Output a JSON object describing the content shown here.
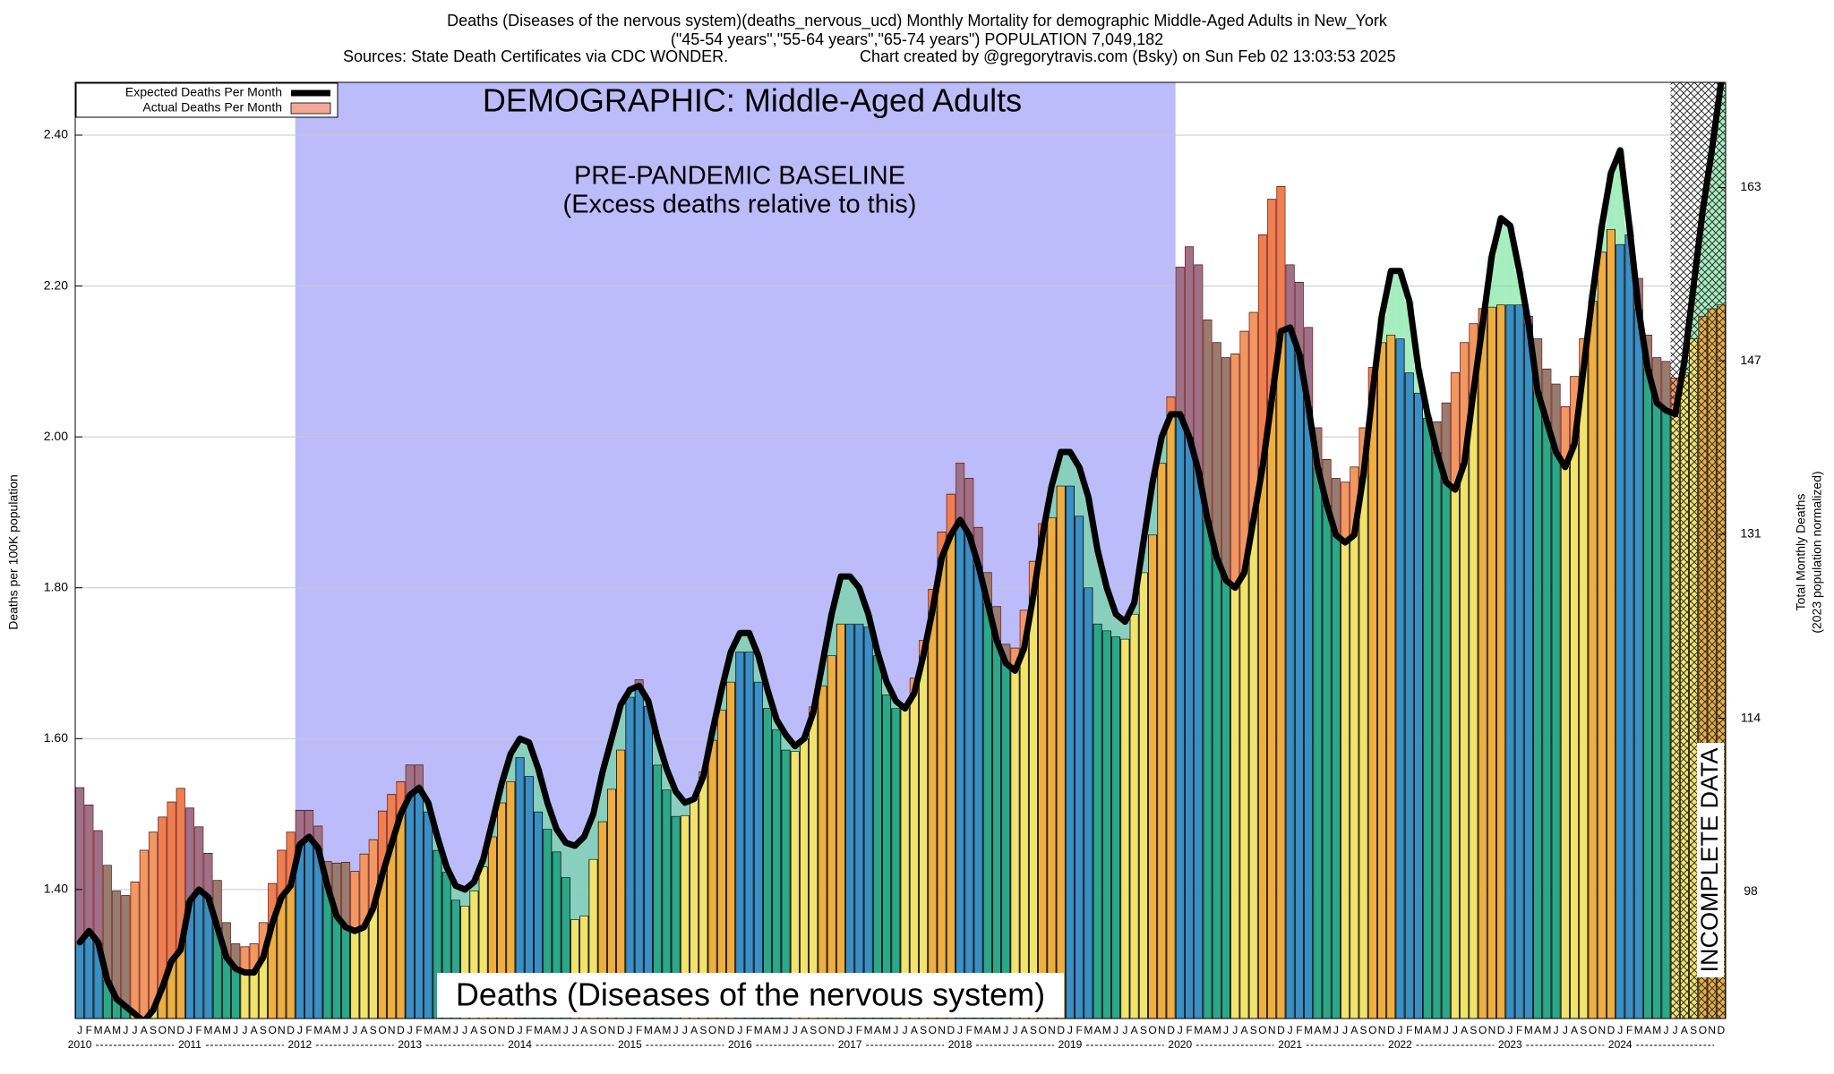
{
  "chart_data": {
    "type": "bar",
    "title": "Deaths (Diseases of the nervous system)(deaths_nervous_ucd) Monthly Mortality for demographic Middle-Aged Adults in New_York",
    "subtitle": "(\"45-54 years\",\"55-64 years\",\"65-74 years\") POPULATION 7,049,182",
    "source": "Sources: State Death Certificates via CDC WONDER.",
    "credit": "Chart created by @gregorytravis.com (Bsky) on Sun Feb 02 13:03:53 2025",
    "y_label": "Deaths per 100K population",
    "y2_label": "Total Monthly Deaths",
    "y2_label_note": "(2023 population normalized)",
    "annotations": {
      "demographic": "DEMOGRAPHIC: Middle-Aged Adults",
      "baseline": "PRE-PANDEMIC BASELINE",
      "baseline_note": "(Excess deaths relative to this)",
      "cause": "Deaths (Diseases of the nervous system)",
      "incomplete": "INCOMPLETE DATA"
    },
    "categories": [
      "J",
      "F",
      "M",
      "A",
      "M",
      "J",
      "J",
      "A",
      "S",
      "O",
      "N",
      "D",
      "J",
      "F",
      "M",
      "A",
      "M",
      "J",
      "J",
      "A",
      "S",
      "O",
      "N",
      "D",
      "J",
      "F",
      "M",
      "A",
      "M",
      "J",
      "J",
      "A",
      "S",
      "O",
      "N",
      "D",
      "J",
      "F",
      "M",
      "A",
      "M",
      "J",
      "J",
      "A",
      "S",
      "O",
      "N",
      "D",
      "J",
      "F",
      "M",
      "A",
      "M",
      "J",
      "J",
      "A",
      "S",
      "O",
      "N",
      "D",
      "J",
      "F",
      "M",
      "A",
      "M",
      "J",
      "J",
      "A",
      "S",
      "O",
      "N",
      "D",
      "J",
      "F",
      "M",
      "A",
      "M",
      "J",
      "J",
      "A",
      "S",
      "O",
      "N",
      "D",
      "J",
      "F",
      "M",
      "A",
      "M",
      "J",
      "J",
      "A",
      "S",
      "O",
      "N",
      "D",
      "J",
      "F",
      "M",
      "A",
      "M",
      "J",
      "J",
      "A",
      "S",
      "O",
      "N",
      "D",
      "J",
      "F",
      "M",
      "A",
      "M",
      "J",
      "J",
      "A",
      "S",
      "O",
      "N",
      "D",
      "J",
      "F",
      "M",
      "A",
      "M",
      "J",
      "J",
      "A",
      "S",
      "O",
      "N",
      "D",
      "J",
      "F",
      "M",
      "A",
      "M",
      "J",
      "J",
      "A",
      "S",
      "O",
      "N",
      "D",
      "J",
      "F",
      "M",
      "A",
      "M",
      "J",
      "J",
      "A",
      "S",
      "O",
      "N",
      "D",
      "J",
      "F",
      "M",
      "A",
      "M",
      "J",
      "J",
      "A",
      "S",
      "O",
      "N",
      "D",
      "J",
      "F",
      "M",
      "A",
      "M",
      "J",
      "J",
      "A",
      "S",
      "O",
      "N",
      "D"
    ],
    "years": [
      "2010",
      "2011",
      "2012",
      "2013",
      "2014",
      "2015",
      "2016",
      "2017",
      "2018",
      "2019",
      "2020",
      "2021",
      "2022",
      "2023",
      "2024"
    ],
    "series": [
      {
        "name": "Actual Deaths Per Month",
        "color": "#f4a898",
        "values": [
          1.535,
          1.512,
          1.478,
          1.432,
          1.398,
          1.392,
          1.41,
          1.452,
          1.476,
          1.496,
          1.516,
          1.534,
          1.508,
          1.483,
          1.448,
          1.412,
          1.356,
          1.328,
          1.324,
          1.328,
          1.356,
          1.408,
          1.452,
          1.476,
          1.505,
          1.505,
          1.484,
          1.437,
          1.435,
          1.436,
          1.424,
          1.447,
          1.466,
          1.504,
          1.526,
          1.543,
          1.565,
          1.565,
          1.503,
          1.452,
          1.423,
          1.386,
          1.378,
          1.398,
          1.43,
          1.47,
          1.515,
          1.543,
          1.575,
          1.55,
          1.503,
          1.48,
          1.45,
          1.416,
          1.36,
          1.365,
          1.44,
          1.49,
          1.533,
          1.585,
          1.655,
          1.678,
          1.643,
          1.565,
          1.532,
          1.497,
          1.498,
          1.52,
          1.556,
          1.598,
          1.638,
          1.675,
          1.715,
          1.715,
          1.675,
          1.64,
          1.612,
          1.585,
          1.583,
          1.6,
          1.642,
          1.67,
          1.71,
          1.752,
          1.752,
          1.752,
          1.748,
          1.71,
          1.658,
          1.64,
          1.645,
          1.68,
          1.73,
          1.798,
          1.874,
          1.924,
          1.965,
          1.945,
          1.88,
          1.82,
          1.775,
          1.725,
          1.72,
          1.77,
          1.835,
          1.885,
          1.893,
          1.935,
          1.935,
          1.895,
          1.8,
          1.752,
          1.743,
          1.735,
          1.732,
          1.765,
          1.82,
          1.87,
          1.965,
          2.053,
          2.225,
          2.252,
          2.228,
          2.155,
          2.125,
          2.105,
          2.11,
          2.14,
          2.165,
          2.268,
          2.315,
          2.332,
          2.228,
          2.205,
          2.145,
          2.012,
          1.97,
          1.945,
          1.94,
          1.96,
          2.012,
          2.092,
          2.125,
          2.135,
          2.13,
          2.085,
          2.058,
          2.025,
          2.02,
          2.045,
          2.085,
          2.125,
          2.15,
          2.17,
          2.172,
          2.175,
          2.175,
          2.175,
          2.16,
          2.13,
          2.09,
          2.07,
          2.04,
          2.08,
          2.13,
          2.18,
          2.245,
          2.275,
          2.255,
          2.268,
          2.21,
          2.135,
          2.105,
          2.1,
          2.078,
          2.085,
          2.13,
          2.16,
          2.17,
          2.175
        ]
      },
      {
        "name": "Expected Deaths Per Month",
        "color": "#000000",
        "values": [
          1.33,
          1.345,
          1.33,
          1.28,
          1.255,
          1.245,
          1.235,
          1.225,
          1.24,
          1.27,
          1.305,
          1.32,
          1.385,
          1.4,
          1.39,
          1.35,
          1.31,
          1.295,
          1.29,
          1.29,
          1.31,
          1.355,
          1.39,
          1.405,
          1.46,
          1.47,
          1.455,
          1.405,
          1.365,
          1.35,
          1.345,
          1.35,
          1.375,
          1.42,
          1.46,
          1.5,
          1.525,
          1.535,
          1.515,
          1.47,
          1.43,
          1.405,
          1.4,
          1.41,
          1.44,
          1.49,
          1.54,
          1.58,
          1.6,
          1.595,
          1.56,
          1.515,
          1.48,
          1.462,
          1.458,
          1.47,
          1.5,
          1.555,
          1.6,
          1.645,
          1.665,
          1.67,
          1.65,
          1.6,
          1.56,
          1.53,
          1.515,
          1.52,
          1.55,
          1.61,
          1.665,
          1.715,
          1.74,
          1.74,
          1.71,
          1.665,
          1.625,
          1.605,
          1.59,
          1.6,
          1.635,
          1.7,
          1.765,
          1.815,
          1.815,
          1.8,
          1.765,
          1.715,
          1.675,
          1.65,
          1.64,
          1.66,
          1.71,
          1.77,
          1.84,
          1.87,
          1.89,
          1.87,
          1.83,
          1.78,
          1.73,
          1.7,
          1.69,
          1.72,
          1.79,
          1.87,
          1.935,
          1.98,
          1.98,
          1.96,
          1.92,
          1.85,
          1.8,
          1.765,
          1.755,
          1.78,
          1.86,
          1.94,
          2.0,
          2.03,
          2.03,
          2.0,
          1.955,
          1.89,
          1.84,
          1.81,
          1.8,
          1.82,
          1.89,
          1.96,
          2.05,
          2.14,
          2.145,
          2.11,
          2.04,
          1.96,
          1.91,
          1.87,
          1.86,
          1.87,
          1.95,
          2.06,
          2.16,
          2.22,
          2.22,
          2.18,
          2.09,
          2.03,
          1.98,
          1.94,
          1.93,
          1.965,
          2.06,
          2.15,
          2.24,
          2.29,
          2.28,
          2.22,
          2.15,
          2.06,
          2.02,
          1.98,
          1.96,
          1.99,
          2.09,
          2.19,
          2.28,
          2.35,
          2.38,
          2.28,
          2.17,
          2.09,
          2.045,
          2.035,
          2.03,
          2.1,
          2.2,
          2.3,
          2.38,
          2.47
        ]
      }
    ],
    "bar_colors": [
      "#3a8fc4",
      "#2aa888",
      "#f2e46a",
      "#eeae40"
    ],
    "excess_color": "#f05a5a",
    "deficit_color": "#5ce08a",
    "baseline_color": "#bcbcfa",
    "ylim": [
      1.229,
      2.47
    ],
    "yticks": [
      {
        "value": 1.4,
        "label": "1.40"
      },
      {
        "value": 1.6,
        "label": "1.60"
      },
      {
        "value": 1.8,
        "label": "1.80"
      },
      {
        "value": 2.0,
        "label": "2.00"
      },
      {
        "value": 2.2,
        "label": "2.20"
      },
      {
        "value": 2.4,
        "label": "2.40"
      }
    ],
    "y2lim": [
      86.3,
      172.7
    ],
    "y2ticks": [
      98,
      114,
      131,
      147,
      163
    ],
    "grid": true,
    "legend": "top-left"
  }
}
